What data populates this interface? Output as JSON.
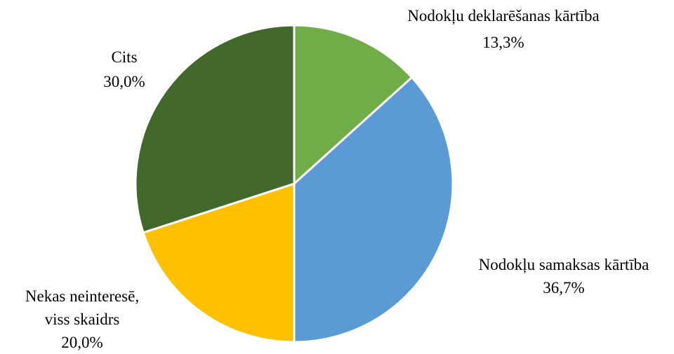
{
  "chart_data": {
    "type": "pie",
    "start_angle": "12 o'clock",
    "direction": "clockwise",
    "slices": [
      {
        "label_lines": [
          "Nodokļu deklarēšanas kārtība"
        ],
        "value_label": "13,3%",
        "value": 13.3,
        "color": "#70AD47"
      },
      {
        "label_lines": [
          "Nodokļu samaksas kārtība"
        ],
        "value_label": "36,7%",
        "value": 36.7,
        "color": "#5B9BD5"
      },
      {
        "label_lines": [
          "Nekas neinteresē,",
          "viss skaidrs"
        ],
        "value_label": "20,0%",
        "value": 20.0,
        "color": "#FFC000"
      },
      {
        "label_lines": [
          "Cits"
        ],
        "value_label": "30,0%",
        "value": 30.0,
        "color": "#43682B"
      }
    ]
  }
}
